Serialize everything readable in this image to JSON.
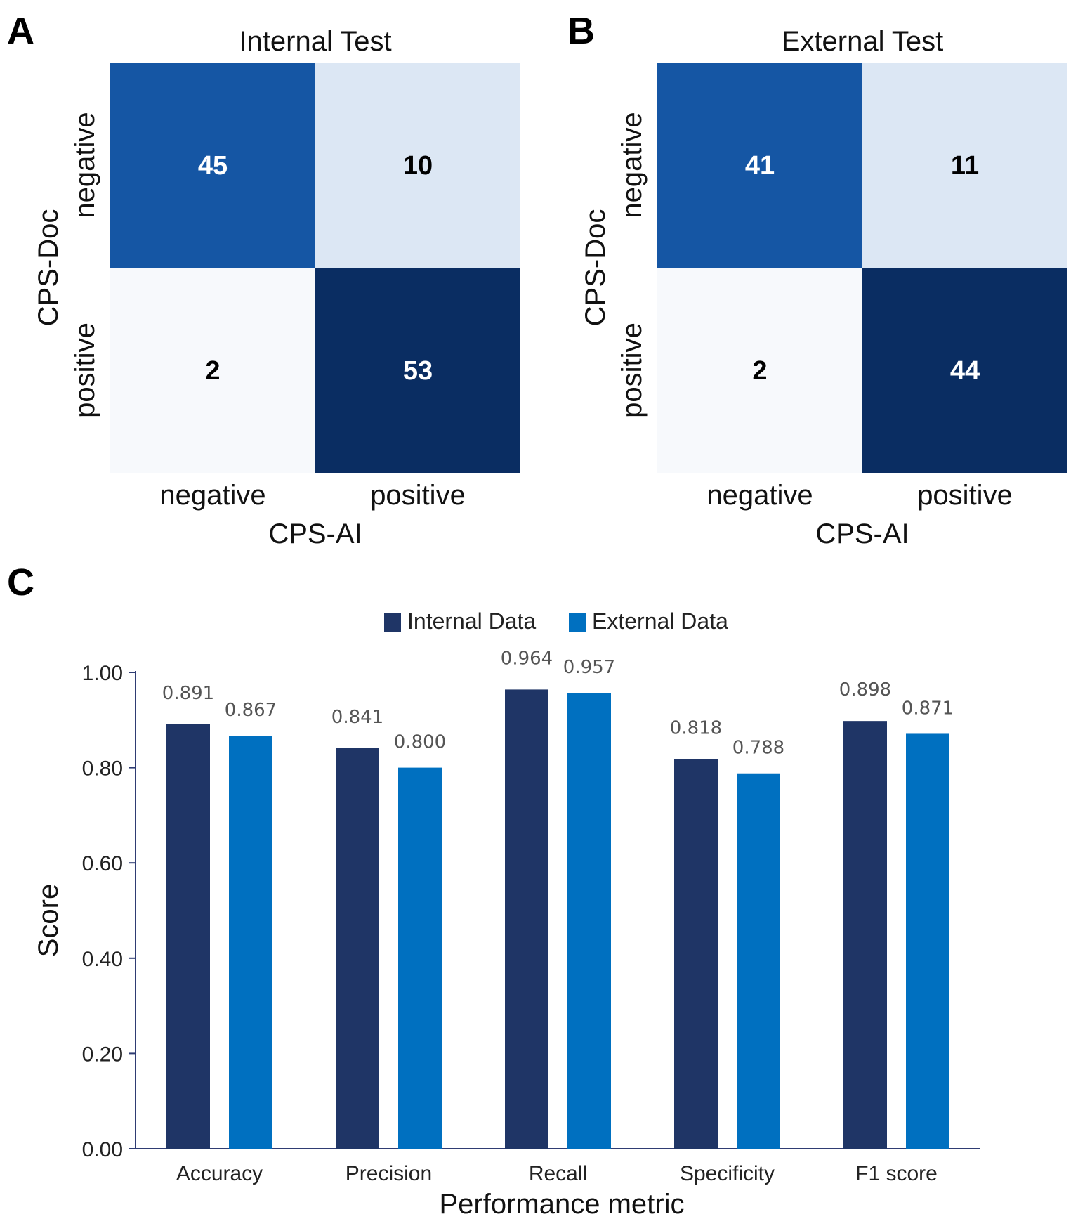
{
  "panels": {
    "a_letter": "A",
    "b_letter": "B",
    "c_letter": "C"
  },
  "chart_data": [
    {
      "type": "heatmap",
      "panel": "A",
      "title": "Internal Test",
      "xlabel": "CPS-AI",
      "ylabel": "CPS-Doc",
      "x_categories": [
        "negative",
        "positive"
      ],
      "y_categories": [
        "negative",
        "positive"
      ],
      "values": [
        [
          45,
          10
        ],
        [
          2,
          53
        ]
      ],
      "colors": [
        [
          "#1556a4",
          "#dce7f4"
        ],
        [
          "#f7f9fc",
          "#0a2d62"
        ]
      ],
      "text_colors": [
        [
          "#ffffff",
          "#000000"
        ],
        [
          "#000000",
          "#ffffff"
        ]
      ]
    },
    {
      "type": "heatmap",
      "panel": "B",
      "title": "External Test",
      "xlabel": "CPS-AI",
      "ylabel": "CPS-Doc",
      "x_categories": [
        "negative",
        "positive"
      ],
      "y_categories": [
        "negative",
        "positive"
      ],
      "values": [
        [
          41,
          11
        ],
        [
          2,
          44
        ]
      ],
      "colors": [
        [
          "#1556a4",
          "#dce7f4"
        ],
        [
          "#f7f9fc",
          "#0a2d62"
        ]
      ],
      "text_colors": [
        [
          "#ffffff",
          "#000000"
        ],
        [
          "#000000",
          "#ffffff"
        ]
      ]
    },
    {
      "type": "bar",
      "panel": "C",
      "categories": [
        "Accuracy",
        "Precision",
        "Recall",
        "Specificity",
        "F1 score"
      ],
      "series": [
        {
          "name": "Internal Data",
          "color": "#1f3566",
          "values": [
            0.891,
            0.841,
            0.964,
            0.818,
            0.898
          ],
          "labels": [
            "0.891",
            "0.841",
            "0.964",
            "0.818",
            "0.898"
          ]
        },
        {
          "name": "External Data",
          "color": "#0070c0",
          "values": [
            0.867,
            0.8,
            0.957,
            0.788,
            0.871
          ],
          "labels": [
            "0.867",
            "0.800",
            "0.957",
            "0.788",
            "0.871"
          ]
        }
      ],
      "xlabel": "Performance metric",
      "ylabel": "Score",
      "ylim": [
        0,
        1
      ],
      "yticks": [
        "0.00",
        "0.20",
        "0.40",
        "0.60",
        "0.80",
        "1.00"
      ],
      "legend_position": "top-center"
    }
  ]
}
